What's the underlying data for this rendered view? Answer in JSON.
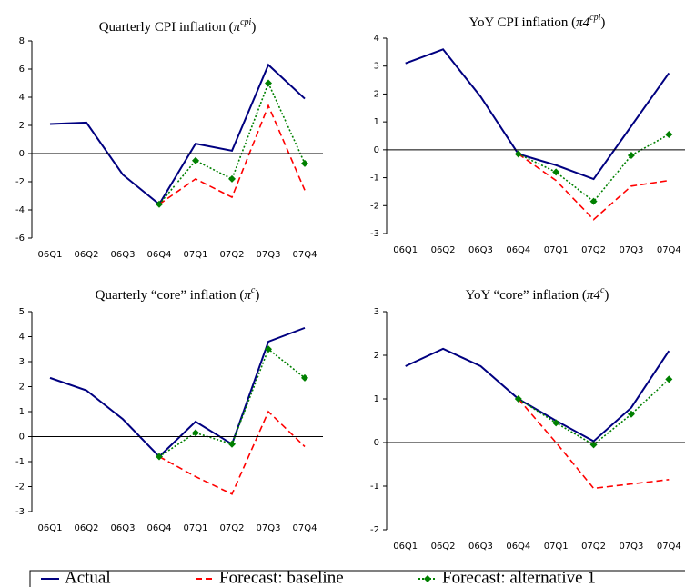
{
  "chart_data": [
    {
      "type": "line",
      "title": {
        "text": "Quarterly CPI inflation (",
        "symbol": "π",
        "sup": "cpi",
        "close": ")"
      },
      "categories": [
        "06Q1",
        "06Q2",
        "06Q3",
        "06Q4",
        "07Q1",
        "07Q2",
        "07Q3",
        "07Q4"
      ],
      "ylim": [
        -6,
        8
      ],
      "yticks": [
        -6,
        -4,
        -2,
        0,
        2,
        4,
        6,
        8
      ],
      "series": [
        {
          "name": "Actual",
          "color": "#000080",
          "style": "solid",
          "values": [
            2.1,
            2.2,
            -1.5,
            -3.6,
            0.7,
            0.2,
            6.3,
            3.9
          ]
        },
        {
          "name": "Forecast: baseline",
          "color": "#ff0000",
          "style": "dashed",
          "values": [
            null,
            null,
            null,
            -3.6,
            -1.8,
            -3.1,
            3.4,
            -2.6
          ]
        },
        {
          "name": "Forecast: alternative 1",
          "color": "#008000",
          "style": "dotted",
          "marker": "diamond",
          "values": [
            null,
            null,
            null,
            -3.6,
            -0.5,
            -1.8,
            5.0,
            -0.7
          ]
        }
      ]
    },
    {
      "type": "line",
      "title": {
        "text": "YoY CPI inflation (",
        "symbol": "π4",
        "sup": "cpi",
        "close": ")"
      },
      "categories": [
        "06Q1",
        "06Q2",
        "06Q3",
        "06Q4",
        "07Q1",
        "07Q2",
        "07Q3",
        "07Q4"
      ],
      "ylim": [
        -3,
        4
      ],
      "yticks": [
        -3,
        -2,
        -1,
        0,
        1,
        2,
        3,
        4
      ],
      "series": [
        {
          "color": "#000080",
          "style": "solid",
          "values": [
            3.1,
            3.6,
            1.9,
            -0.15,
            -0.55,
            -1.05,
            0.85,
            2.75
          ]
        },
        {
          "color": "#ff0000",
          "style": "dashed",
          "values": [
            null,
            null,
            null,
            -0.15,
            -1.1,
            -2.5,
            -1.3,
            -1.1
          ]
        },
        {
          "color": "#008000",
          "style": "dotted",
          "marker": "diamond",
          "values": [
            null,
            null,
            null,
            -0.15,
            -0.8,
            -1.85,
            -0.2,
            0.55
          ]
        }
      ]
    },
    {
      "type": "line",
      "title": {
        "text": "Quarterly “core” inflation (",
        "symbol": "π",
        "sup": "c",
        "close": ")"
      },
      "categories": [
        "06Q1",
        "06Q2",
        "06Q3",
        "06Q4",
        "07Q1",
        "07Q2",
        "07Q3",
        "07Q4"
      ],
      "ylim": [
        -3,
        5
      ],
      "yticks": [
        -3,
        -2,
        -1,
        0,
        1,
        2,
        3,
        4,
        5
      ],
      "series": [
        {
          "color": "#000080",
          "style": "solid",
          "values": [
            2.35,
            1.85,
            0.7,
            -0.8,
            0.6,
            -0.3,
            3.8,
            4.35
          ]
        },
        {
          "color": "#ff0000",
          "style": "dashed",
          "values": [
            null,
            null,
            null,
            -0.8,
            -1.6,
            -2.3,
            1.0,
            -0.4
          ]
        },
        {
          "color": "#008000",
          "style": "dotted",
          "marker": "diamond",
          "values": [
            null,
            null,
            null,
            -0.8,
            0.15,
            -0.3,
            3.5,
            2.35
          ]
        }
      ]
    },
    {
      "type": "line",
      "title": {
        "text": "YoY “core” inflation (",
        "symbol": "π4",
        "sup": "c",
        "close": ")"
      },
      "categories": [
        "06Q1",
        "06Q2",
        "06Q3",
        "06Q4",
        "07Q1",
        "07Q2",
        "07Q3",
        "07Q4"
      ],
      "ylim": [
        -2,
        3
      ],
      "yticks": [
        -2,
        -1,
        0,
        1,
        2,
        3
      ],
      "series": [
        {
          "color": "#000080",
          "style": "solid",
          "values": [
            1.75,
            2.15,
            1.75,
            1.0,
            0.5,
            0.03,
            0.8,
            2.1
          ]
        },
        {
          "color": "#ff0000",
          "style": "dashed",
          "values": [
            null,
            null,
            null,
            1.0,
            0.0,
            -1.05,
            -0.95,
            -0.85
          ]
        },
        {
          "color": "#008000",
          "style": "dotted",
          "marker": "diamond",
          "values": [
            null,
            null,
            null,
            1.0,
            0.45,
            -0.05,
            0.65,
            1.45
          ]
        }
      ]
    }
  ]
}
